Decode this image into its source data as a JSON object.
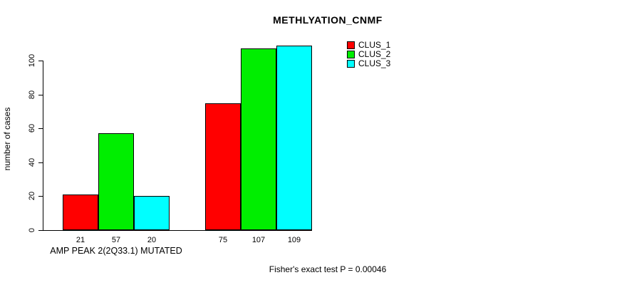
{
  "chart_data": {
    "type": "bar",
    "title": "METHLYATION_CNMF",
    "ylabel": "number of cases",
    "xlabel": "AMP PEAK 2(2Q33.1) MUTATED",
    "footnote": "Fisher's exact test P = 0.00046",
    "categories": [
      "AMP PEAK 2(2Q33.1) MUTATED",
      ""
    ],
    "series": [
      {
        "name": "CLUS_1",
        "color": "#FF0000",
        "values": [
          21,
          75
        ]
      },
      {
        "name": "CLUS_2",
        "color": "#00EE00",
        "values": [
          57,
          107
        ]
      },
      {
        "name": "CLUS_3",
        "color": "#00FFFF",
        "values": [
          20,
          109
        ]
      }
    ],
    "bar_labels": [
      [
        "21",
        "57",
        "20"
      ],
      [
        "75",
        "107",
        "109"
      ]
    ],
    "yticks": [
      0,
      20,
      40,
      60,
      80,
      100
    ],
    "ylim": [
      0,
      110
    ],
    "grid": false,
    "legend_position": "top-right",
    "legend_entries": [
      "CLUS_1",
      "CLUS_2",
      "CLUS_3"
    ]
  }
}
